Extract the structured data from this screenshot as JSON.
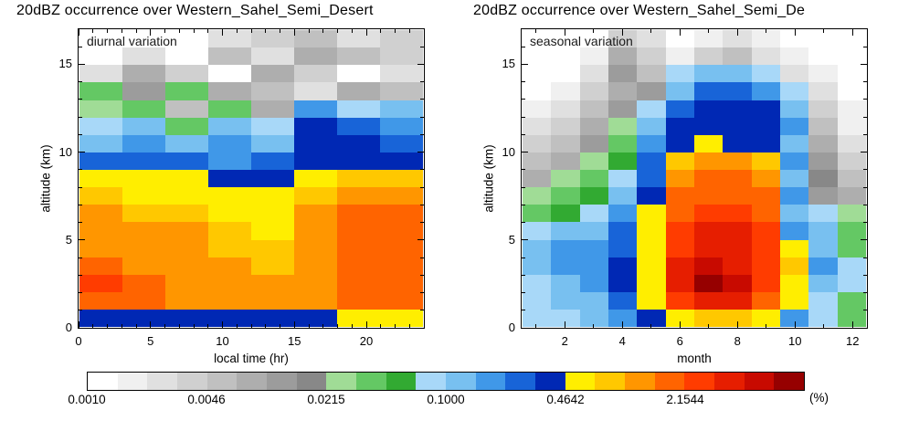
{
  "palette": [
    "#ffffff",
    "#f0f0f0",
    "#e0e0e0",
    "#d0d0d0",
    "#c0c0c0",
    "#aeaeae",
    "#9c9c9c",
    "#888888",
    "#a0dc96",
    "#64c864",
    "#32aa32",
    "#a8d8f8",
    "#78c0f0",
    "#4098e8",
    "#1864d8",
    "#0028b4",
    "#ffee00",
    "#ffc800",
    "#ff9600",
    "#ff6400",
    "#ff3c00",
    "#e61e00",
    "#c80a00",
    "#960000"
  ],
  "palette_bin_edges_percent": [
    0.001,
    0.0015,
    0.0022,
    0.0032,
    0.0046,
    0.0068,
    0.01,
    0.0147,
    0.0215,
    0.0316,
    0.0464,
    0.0681,
    0.1,
    0.1468,
    0.2154,
    0.3162,
    0.4642,
    0.6813,
    1.0,
    1.4678,
    2.1544,
    3.1623,
    4.6416,
    6.8129,
    10.0
  ],
  "colorbar": {
    "tick_labels": [
      "0.0010",
      "0.0046",
      "0.0215",
      "0.1000",
      "0.4642",
      "2.1544"
    ],
    "unit_label": "(%)"
  },
  "chart_data": [
    {
      "type": "heatmap",
      "title": "20dBZ occurrence over Western_Sahel_Semi_Desert",
      "inner_label": "diurnal variation",
      "xlabel": "local time (hr)",
      "ylabel": "altitude (km)",
      "x_axis_range": [
        0,
        24
      ],
      "y_axis_range": [
        0,
        17
      ],
      "x_ticks": [
        0,
        5,
        10,
        15,
        20
      ],
      "x_minor_ticks": [
        1,
        2,
        3,
        4,
        6,
        7,
        8,
        9,
        11,
        12,
        13,
        14,
        16,
        17,
        18,
        19,
        21,
        22,
        23
      ],
      "y_ticks": [
        0,
        5,
        10,
        15
      ],
      "y_minor_ticks": [
        1,
        2,
        3,
        4,
        6,
        7,
        8,
        9,
        11,
        12,
        13,
        14,
        16
      ],
      "x_bins_hr_start": [
        0,
        3,
        6,
        9,
        12,
        15,
        18,
        21
      ],
      "y_bins_km": "1 km bins, grid rows listed top-to-bottom from 16-17 km down to 0-1 km",
      "values_are": "indices into palette; bin k spans palette_bin_edges_percent[k]..[k+1] occurrence (%)",
      "grid": [
        [
          0,
          0,
          0,
          2,
          3,
          4,
          2,
          3
        ],
        [
          0,
          2,
          0,
          4,
          2,
          5,
          4,
          3
        ],
        [
          2,
          5,
          3,
          0,
          5,
          3,
          0,
          2
        ],
        [
          9,
          6,
          9,
          5,
          4,
          2,
          5,
          4
        ],
        [
          8,
          9,
          4,
          9,
          5,
          13,
          11,
          12
        ],
        [
          11,
          12,
          9,
          12,
          11,
          15,
          14,
          13
        ],
        [
          12,
          13,
          12,
          13,
          12,
          15,
          15,
          14
        ],
        [
          14,
          14,
          14,
          13,
          14,
          15,
          15,
          15
        ],
        [
          16,
          16,
          16,
          15,
          15,
          16,
          17,
          17
        ],
        [
          17,
          16,
          16,
          16,
          16,
          17,
          18,
          18
        ],
        [
          18,
          17,
          17,
          16,
          16,
          18,
          19,
          19
        ],
        [
          18,
          18,
          18,
          17,
          16,
          18,
          19,
          19
        ],
        [
          18,
          18,
          18,
          17,
          17,
          18,
          19,
          19
        ],
        [
          19,
          18,
          18,
          18,
          17,
          18,
          19,
          19
        ],
        [
          20,
          19,
          18,
          18,
          18,
          18,
          19,
          19
        ],
        [
          19,
          19,
          18,
          18,
          18,
          18,
          19,
          19
        ],
        [
          15,
          15,
          15,
          15,
          15,
          15,
          16,
          16
        ]
      ]
    },
    {
      "type": "heatmap",
      "title": "20dBZ occurrence over Western_Sahel_Semi_De",
      "inner_label": "seasonal variation",
      "xlabel": "month",
      "ylabel": "altitude (km)",
      "x_axis_range": [
        0.5,
        12.5
      ],
      "y_axis_range": [
        0,
        17
      ],
      "x_ticks": [
        2,
        4,
        6,
        8,
        10,
        12
      ],
      "x_minor_ticks": [
        1,
        3,
        5,
        7,
        9,
        11
      ],
      "y_ticks": [
        0,
        5,
        10,
        15
      ],
      "y_minor_ticks": [
        1,
        2,
        3,
        4,
        6,
        7,
        8,
        9,
        11,
        12,
        13,
        14,
        16
      ],
      "x_bins_month": [
        1,
        2,
        3,
        4,
        5,
        6,
        7,
        8,
        9,
        10,
        11,
        12
      ],
      "y_bins_km": "1 km bins, grid rows listed top-to-bottom from 16-17 km down to 0-1 km",
      "values_are": "indices into palette; bin k spans palette_bin_edges_percent[k]..[k+1] occurrence (%)",
      "grid": [
        [
          0,
          0,
          0,
          3,
          2,
          0,
          1,
          2,
          1,
          0,
          0,
          0
        ],
        [
          0,
          0,
          1,
          5,
          3,
          1,
          3,
          4,
          2,
          1,
          0,
          0
        ],
        [
          0,
          0,
          2,
          6,
          4,
          11,
          12,
          12,
          11,
          2,
          1,
          0
        ],
        [
          0,
          1,
          3,
          5,
          6,
          12,
          14,
          14,
          13,
          11,
          2,
          0
        ],
        [
          1,
          2,
          4,
          6,
          11,
          14,
          15,
          15,
          15,
          12,
          3,
          1
        ],
        [
          2,
          3,
          5,
          8,
          12,
          15,
          15,
          15,
          15,
          13,
          4,
          1
        ],
        [
          3,
          4,
          6,
          9,
          13,
          15,
          16,
          15,
          15,
          12,
          5,
          2
        ],
        [
          4,
          5,
          8,
          10,
          14,
          17,
          18,
          18,
          17,
          13,
          6,
          3
        ],
        [
          5,
          8,
          9,
          11,
          14,
          18,
          19,
          19,
          18,
          12,
          7,
          4
        ],
        [
          8,
          9,
          10,
          12,
          15,
          19,
          19,
          19,
          19,
          13,
          6,
          5
        ],
        [
          9,
          10,
          11,
          13,
          16,
          19,
          20,
          20,
          19,
          12,
          11,
          8
        ],
        [
          11,
          12,
          12,
          14,
          16,
          20,
          21,
          21,
          20,
          13,
          12,
          9
        ],
        [
          12,
          13,
          13,
          14,
          16,
          20,
          21,
          21,
          20,
          16,
          12,
          9
        ],
        [
          12,
          13,
          13,
          15,
          16,
          21,
          22,
          21,
          20,
          17,
          13,
          11
        ],
        [
          11,
          12,
          13,
          15,
          16,
          21,
          23,
          22,
          20,
          16,
          12,
          11
        ],
        [
          11,
          12,
          12,
          14,
          16,
          20,
          21,
          21,
          19,
          16,
          11,
          9
        ],
        [
          11,
          11,
          12,
          13,
          15,
          16,
          17,
          17,
          16,
          13,
          11,
          9
        ]
      ]
    }
  ]
}
